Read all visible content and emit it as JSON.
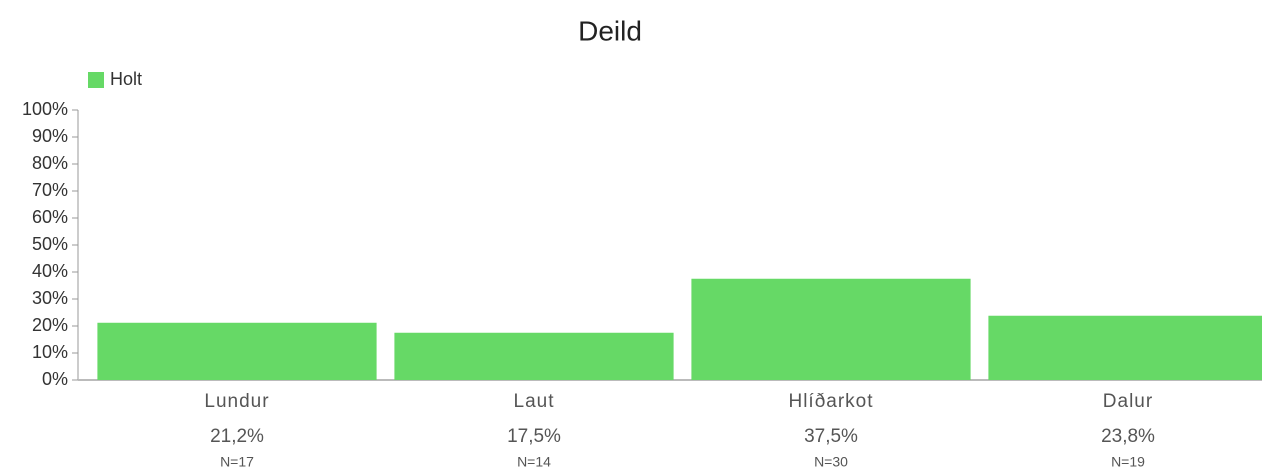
{
  "chart_data": {
    "type": "bar",
    "title": "Deild",
    "legend": "Holt",
    "categories": [
      "Lundur",
      "Laut",
      "Hlíðarkot",
      "Dalur"
    ],
    "values": [
      21.2,
      17.5,
      37.5,
      23.8
    ],
    "value_labels": [
      "21,2%",
      "17,5%",
      "37,5%",
      "23,8%"
    ],
    "n_labels": [
      "N=17",
      "N=14",
      "N=30",
      "N=19"
    ],
    "color": "#66d966",
    "ylim": [
      0,
      100
    ],
    "yticks": [
      {
        "value": 0,
        "label": "0%"
      },
      {
        "value": 10,
        "label": "10%"
      },
      {
        "value": 20,
        "label": "20%"
      },
      {
        "value": 30,
        "label": "30%"
      },
      {
        "value": 40,
        "label": "40%"
      },
      {
        "value": 50,
        "label": "50%"
      },
      {
        "value": 60,
        "label": "60%"
      },
      {
        "value": 70,
        "label": "70%"
      },
      {
        "value": 80,
        "label": "80%"
      },
      {
        "value": 90,
        "label": "90%"
      },
      {
        "value": 100,
        "label": "100%"
      }
    ]
  }
}
